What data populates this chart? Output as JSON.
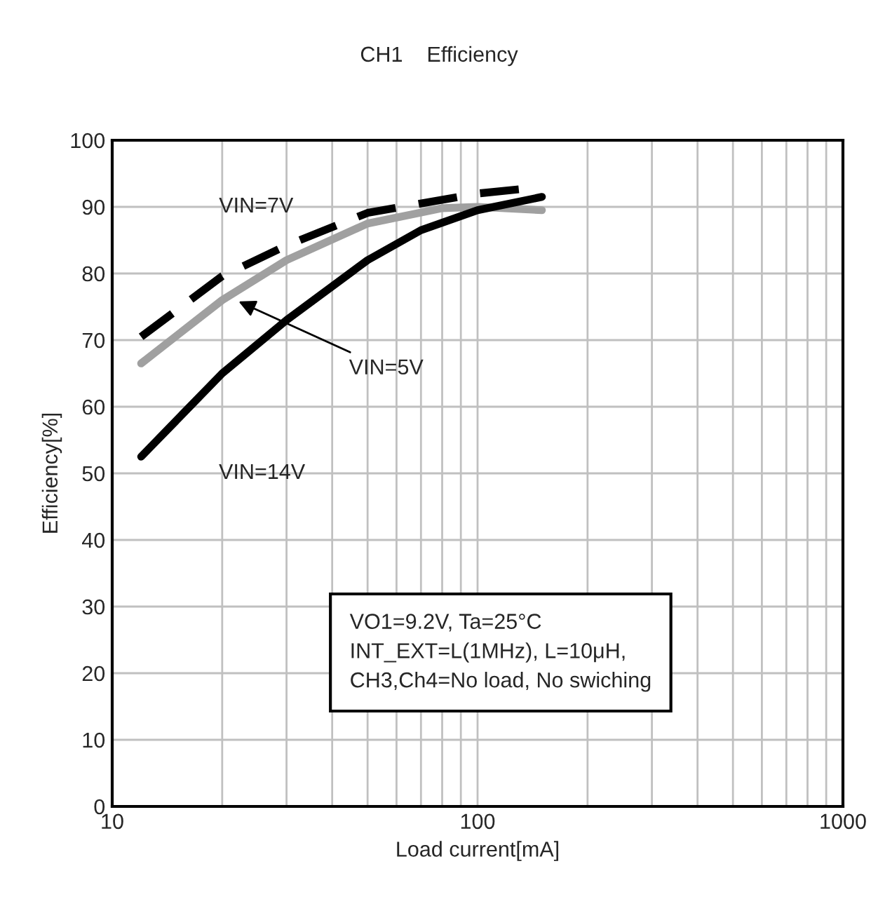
{
  "chart_data": {
    "type": "line",
    "title": "CH1    Efficiency",
    "xlabel": "Load current[mA]",
    "ylabel": "Efficiency[%]",
    "log": "x",
    "xlim": [
      10,
      1000
    ],
    "xticks": [
      10,
      100,
      1000
    ],
    "ylim": [
      0,
      100
    ],
    "yticks": [
      0,
      10,
      20,
      30,
      40,
      50,
      60,
      70,
      80,
      90,
      100
    ],
    "grid": true,
    "series": [
      {
        "x": [
          12,
          20,
          30,
          50,
          100,
          150
        ],
        "values": [
          70.5,
          79.6,
          84.2,
          89.1,
          92,
          93
        ],
        "color": "#000000",
        "line_style": "dashed"
      },
      {
        "x": [
          12,
          20,
          30,
          50,
          80,
          100,
          150
        ],
        "values": [
          66.5,
          76,
          82,
          87.5,
          89.8,
          90,
          89.5
        ],
        "color": "#a0a0a0",
        "line_style": "solid"
      },
      {
        "x": [
          12,
          20,
          30,
          50,
          70,
          100,
          150
        ],
        "values": [
          52.5,
          65,
          73,
          82,
          86.5,
          89.5,
          91.5
        ],
        "color": "#000000",
        "line_style": "solid"
      }
    ],
    "annotations": [
      "VIN=7V",
      "VIN=5V",
      "VIN=14V",
      "VO1=9.2V, Ta=25°C\nINT_EXT=L(1MHz), L=10μH,\nCH3,Ch4=No load, No swiching"
    ]
  }
}
